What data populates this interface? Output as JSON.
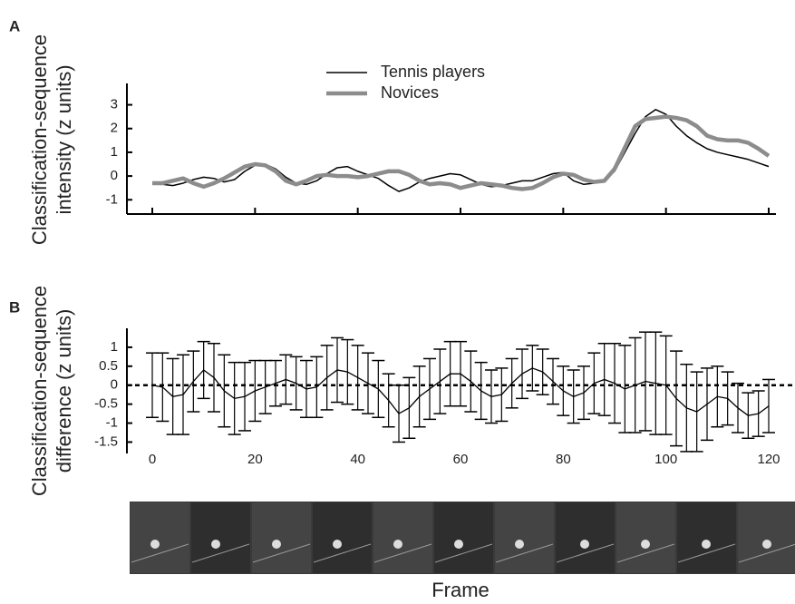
{
  "chart_data": [
    {
      "type": "line",
      "panel": "A",
      "ylabel": [
        "Classification-sequence",
        "intensity (z units)"
      ],
      "x": [
        0,
        2,
        4,
        6,
        8,
        10,
        12,
        14,
        16,
        18,
        20,
        22,
        24,
        26,
        28,
        30,
        32,
        34,
        36,
        38,
        40,
        42,
        44,
        46,
        48,
        50,
        52,
        54,
        56,
        58,
        60,
        62,
        64,
        66,
        68,
        70,
        72,
        74,
        76,
        78,
        80,
        82,
        84,
        86,
        88,
        90,
        92,
        94,
        96,
        98,
        100,
        102,
        104,
        106,
        108,
        110,
        112,
        114,
        116,
        118,
        120
      ],
      "series": [
        {
          "name": "Tennis players",
          "color": "#000000",
          "width": 1.5,
          "values": [
            -0.3,
            -0.35,
            -0.4,
            -0.3,
            -0.15,
            -0.05,
            -0.1,
            -0.25,
            -0.15,
            0.2,
            0.45,
            0.5,
            0.3,
            -0.05,
            -0.3,
            -0.35,
            -0.2,
            0.1,
            0.35,
            0.4,
            0.2,
            0.05,
            -0.1,
            -0.4,
            -0.65,
            -0.5,
            -0.25,
            -0.1,
            0.0,
            0.1,
            0.05,
            -0.15,
            -0.35,
            -0.45,
            -0.4,
            -0.3,
            -0.2,
            -0.2,
            -0.05,
            0.1,
            0.15,
            -0.2,
            -0.35,
            -0.3,
            -0.15,
            0.2,
            1.0,
            1.8,
            2.5,
            2.8,
            2.6,
            2.1,
            1.7,
            1.4,
            1.15,
            1.0,
            0.9,
            0.8,
            0.7,
            0.55,
            0.4
          ]
        },
        {
          "name": "Novices",
          "color": "#8c8c8c",
          "width": 4.5,
          "values": [
            -0.3,
            -0.3,
            -0.2,
            -0.1,
            -0.3,
            -0.45,
            -0.3,
            -0.1,
            0.15,
            0.4,
            0.5,
            0.45,
            0.2,
            -0.2,
            -0.35,
            -0.2,
            0.0,
            0.05,
            0.0,
            0.0,
            -0.05,
            0.0,
            0.1,
            0.2,
            0.2,
            0.05,
            -0.2,
            -0.35,
            -0.3,
            -0.35,
            -0.5,
            -0.4,
            -0.3,
            -0.35,
            -0.4,
            -0.5,
            -0.55,
            -0.5,
            -0.3,
            -0.05,
            0.1,
            0.05,
            -0.15,
            -0.25,
            -0.2,
            0.3,
            1.2,
            2.1,
            2.4,
            2.45,
            2.5,
            2.45,
            2.35,
            2.1,
            1.7,
            1.55,
            1.5,
            1.5,
            1.4,
            1.15,
            0.85
          ]
        }
      ],
      "xlim": [
        0,
        120
      ],
      "xticks": [
        0,
        20,
        40,
        60,
        80,
        100,
        120
      ],
      "ylim": [
        -1.6,
        3.9
      ],
      "yticks": [
        -1,
        0,
        1,
        2,
        3
      ]
    },
    {
      "type": "errorbar",
      "panel": "B",
      "ylabel": [
        "Classification-sequence",
        "difference (z units)"
      ],
      "xlabel": "Frame",
      "x": [
        0,
        2,
        4,
        6,
        8,
        10,
        12,
        14,
        16,
        18,
        20,
        22,
        24,
        26,
        28,
        30,
        32,
        34,
        36,
        38,
        40,
        42,
        44,
        46,
        48,
        50,
        52,
        54,
        56,
        58,
        60,
        62,
        64,
        66,
        68,
        70,
        72,
        74,
        76,
        78,
        80,
        82,
        84,
        86,
        88,
        90,
        92,
        94,
        96,
        98,
        100,
        102,
        104,
        106,
        108,
        110,
        112,
        114,
        116,
        118,
        120
      ],
      "values": [
        0,
        -0.05,
        -0.3,
        -0.25,
        0.1,
        0.4,
        0.2,
        -0.15,
        -0.35,
        -0.3,
        -0.15,
        -0.05,
        0.05,
        0.15,
        0.05,
        -0.1,
        -0.05,
        0.2,
        0.4,
        0.35,
        0.2,
        0.05,
        -0.1,
        -0.4,
        -0.75,
        -0.6,
        -0.3,
        -0.1,
        0.1,
        0.3,
        0.3,
        0.1,
        -0.15,
        -0.3,
        -0.25,
        0.05,
        0.3,
        0.45,
        0.35,
        0.1,
        -0.15,
        -0.3,
        -0.2,
        0.05,
        0.15,
        0.05,
        -0.1,
        0.0,
        0.1,
        0.05,
        0.0,
        -0.35,
        -0.6,
        -0.7,
        -0.5,
        -0.3,
        -0.35,
        -0.6,
        -0.8,
        -0.75,
        -0.55
      ],
      "errors": [
        0.85,
        0.9,
        1.0,
        1.05,
        0.8,
        0.75,
        0.9,
        0.95,
        0.95,
        0.9,
        0.8,
        0.7,
        0.6,
        0.65,
        0.7,
        0.75,
        0.8,
        0.85,
        0.85,
        0.85,
        0.85,
        0.8,
        0.75,
        0.7,
        0.75,
        0.8,
        0.8,
        0.8,
        0.85,
        0.85,
        0.85,
        0.8,
        0.75,
        0.7,
        0.7,
        0.65,
        0.65,
        0.6,
        0.6,
        0.6,
        0.65,
        0.7,
        0.7,
        0.8,
        0.95,
        1.05,
        1.15,
        1.25,
        1.3,
        1.35,
        1.3,
        1.25,
        1.15,
        1.05,
        0.95,
        0.8,
        0.7,
        0.65,
        0.6,
        0.6,
        0.7
      ],
      "color": "#000000",
      "reference_line": 0,
      "xlim": [
        0,
        120
      ],
      "xticks": [
        0,
        20,
        40,
        60,
        80,
        100,
        120
      ],
      "ylim": [
        -1.8,
        1.5
      ],
      "yticks": [
        -1.5,
        -1,
        -0.5,
        0,
        0.5,
        1
      ]
    }
  ]
}
